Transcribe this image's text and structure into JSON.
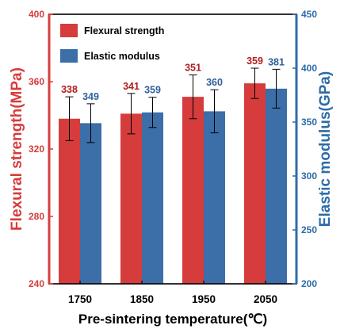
{
  "chart_data": {
    "type": "bar",
    "categories": [
      "1750",
      "1850",
      "1950",
      "2050"
    ],
    "series": [
      {
        "name": "Flexural strength",
        "axis": "left",
        "color": "#d63c3c",
        "values": [
          338,
          341,
          351,
          359
        ],
        "errors": [
          13,
          12,
          13,
          9
        ],
        "data_labels": [
          "338",
          "341",
          "351",
          "359"
        ],
        "label_color": "#b11e1e"
      },
      {
        "name": "Elastic modulus",
        "axis": "right",
        "color": "#3c6ea8",
        "values": [
          349,
          359,
          360,
          381
        ],
        "errors": [
          18,
          14,
          20,
          18
        ],
        "data_labels": [
          "349",
          "359",
          "360",
          "381"
        ],
        "label_color": "#2e5f9a"
      }
    ],
    "xlabel": "Pre-sintering temperature(℃)",
    "ylabel_left": "Flexural strength(MPa)",
    "ylabel_right": "Elastic modulus(GPa)",
    "ylim_left": [
      240,
      400
    ],
    "yticks_left": [
      240,
      280,
      320,
      360,
      400
    ],
    "ylim_right": [
      200,
      450
    ],
    "yticks_right": [
      200,
      250,
      300,
      350,
      400,
      450
    ],
    "grid": false,
    "legend": "top-left",
    "left_axis_color": "#d63c3c",
    "right_axis_color": "#2e6ca8"
  }
}
